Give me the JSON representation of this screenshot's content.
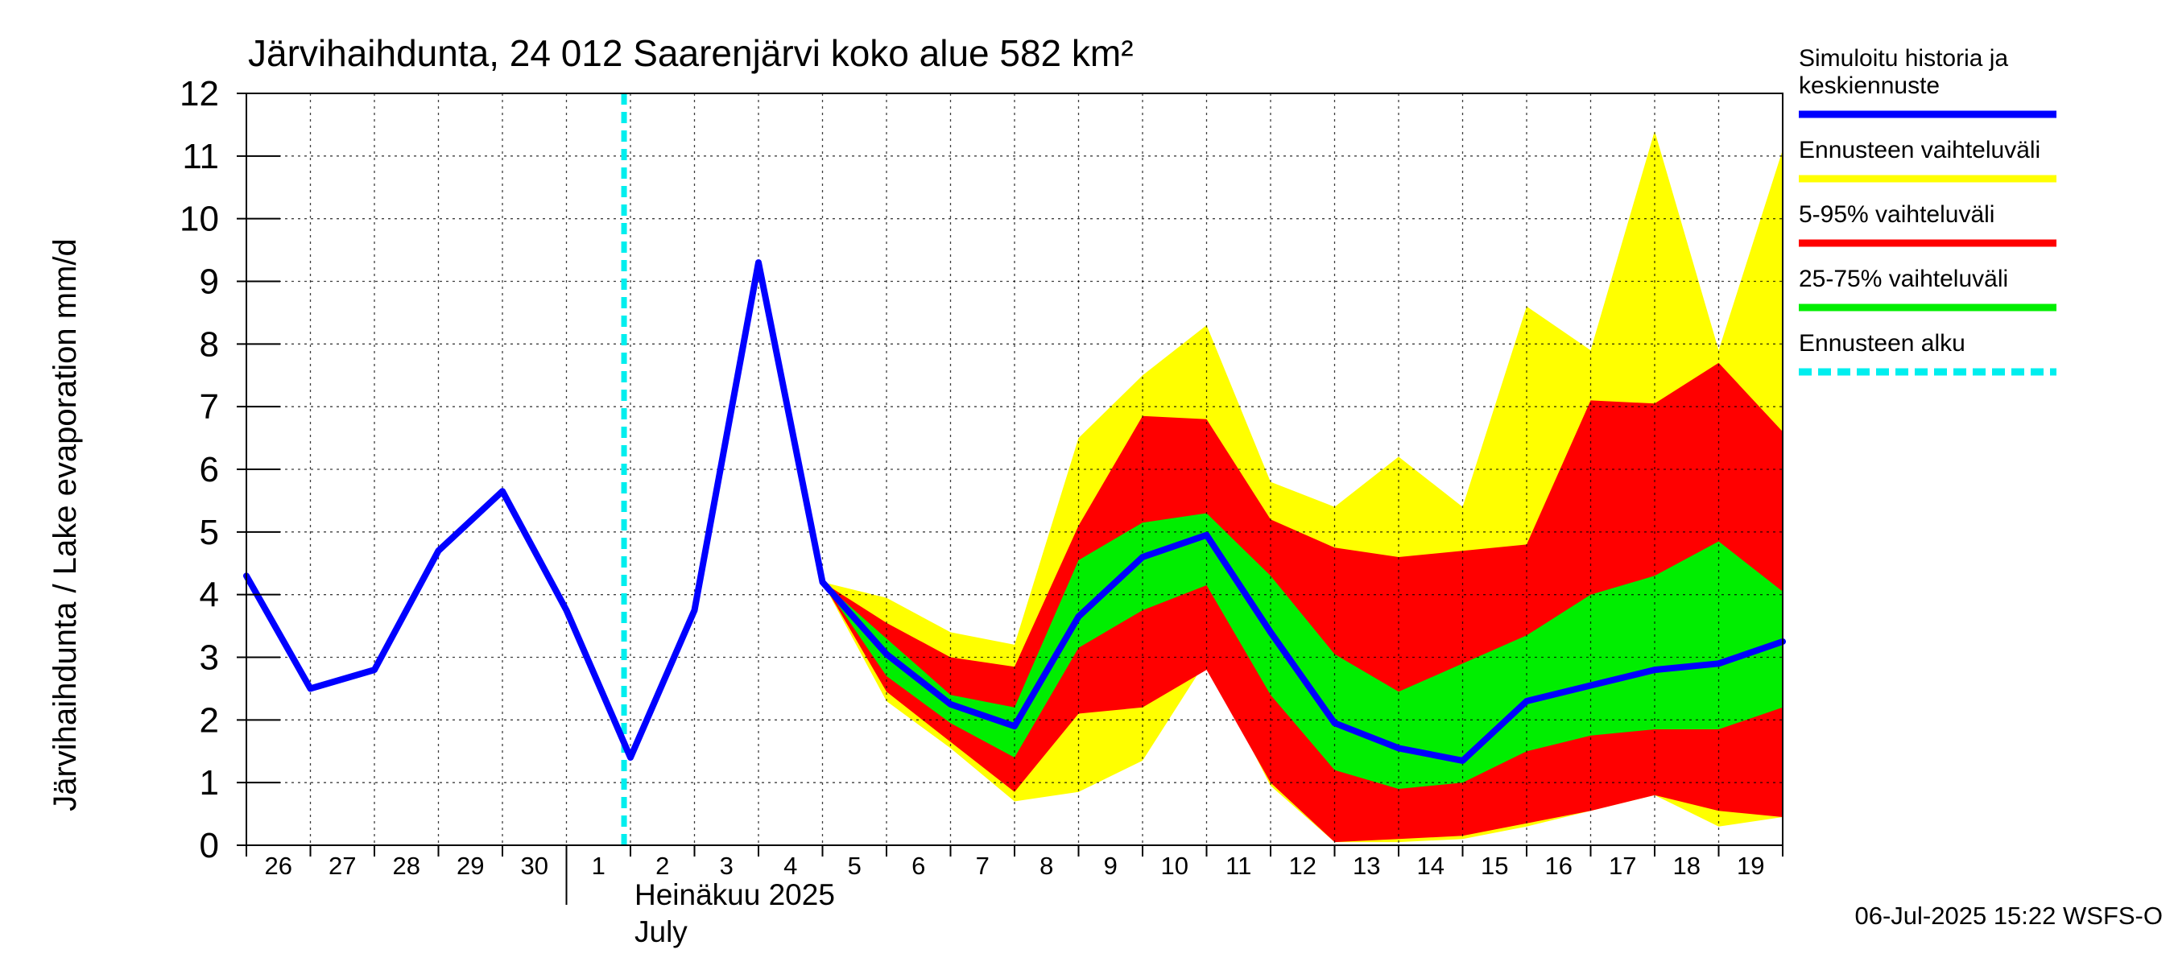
{
  "chart_data": {
    "type": "area",
    "title": "Järvihaihdunta, 24 012 Saarenjärvi koko alue 582 km²",
    "ylabel": "Järvihaihdunta / Lake evaporation   mm/d",
    "ylim": [
      0,
      12
    ],
    "yticks": [
      "0",
      "1",
      "2",
      "3",
      "4",
      "5",
      "6",
      "7",
      "8",
      "9",
      "10",
      "11",
      "12"
    ],
    "x_tick_labels": [
      "26",
      "27",
      "28",
      "29",
      "30",
      "1",
      "2",
      "3",
      "4",
      "5",
      "6",
      "7",
      "8",
      "9",
      "10",
      "11",
      "12",
      "13",
      "14",
      "15",
      "16",
      "17",
      "18",
      "19"
    ],
    "month_label_fi": "Heinäkuu  2025",
    "month_label_en": "July",
    "grid": true,
    "legend_placement": "right",
    "forecast_start_day": 5.9,
    "history": {
      "name": "Simuloitu historia ja keskiennuste",
      "days": [
        0,
        1,
        2,
        3,
        4,
        5,
        6,
        7,
        8,
        9,
        10,
        11,
        12,
        13,
        14,
        15,
        16,
        17,
        18,
        19,
        20,
        21,
        22,
        23,
        24
      ],
      "values": [
        4.3,
        2.5,
        2.8,
        4.7,
        5.65,
        3.75,
        1.4,
        3.75,
        9.3,
        4.2,
        3.05,
        2.25,
        1.9,
        3.65,
        4.6,
        4.95,
        3.4,
        1.95,
        1.55,
        1.35,
        2.3,
        2.55,
        2.8,
        2.9,
        3.25
      ]
    },
    "bands": [
      {
        "name": "Ennusteen vaihteluväli",
        "color": "#ffff00",
        "days": [
          9,
          10,
          11,
          12,
          13,
          14,
          15,
          16,
          17,
          18,
          19,
          20,
          21,
          22,
          23,
          24
        ],
        "upper": [
          4.2,
          3.95,
          3.4,
          3.2,
          6.5,
          7.5,
          8.3,
          5.8,
          5.4,
          6.2,
          5.4,
          8.6,
          7.9,
          11.4,
          7.9,
          11.1
        ],
        "lower": [
          4.2,
          2.3,
          1.55,
          0.7,
          0.85,
          1.35,
          2.95,
          0.95,
          0.05,
          0.05,
          0.1,
          0.3,
          0.55,
          0.8,
          0.3,
          0.45
        ]
      },
      {
        "name": "5-95% vaihteluväli",
        "color": "#ff0000",
        "days": [
          9,
          10,
          11,
          12,
          13,
          14,
          15,
          16,
          17,
          18,
          19,
          20,
          21,
          22,
          23,
          24
        ],
        "upper": [
          4.2,
          3.55,
          3.0,
          2.85,
          5.1,
          6.85,
          6.8,
          5.2,
          4.75,
          4.6,
          4.7,
          4.8,
          7.1,
          7.05,
          7.7,
          6.6
        ],
        "lower": [
          4.2,
          2.45,
          1.65,
          0.85,
          2.1,
          2.2,
          2.8,
          1.0,
          0.05,
          0.1,
          0.15,
          0.35,
          0.55,
          0.8,
          0.55,
          0.45
        ]
      },
      {
        "name": "25-75% vaihteluväli",
        "color": "#00ee00",
        "days": [
          9,
          10,
          11,
          12,
          13,
          14,
          15,
          16,
          17,
          18,
          19,
          20,
          21,
          22,
          23,
          24
        ],
        "upper": [
          4.2,
          3.3,
          2.4,
          2.2,
          4.55,
          5.15,
          5.3,
          4.3,
          3.05,
          2.45,
          2.9,
          3.35,
          4.0,
          4.3,
          4.85,
          4.05
        ],
        "lower": [
          4.2,
          2.7,
          1.95,
          1.4,
          3.15,
          3.75,
          4.15,
          2.4,
          1.2,
          0.9,
          1.0,
          1.5,
          1.75,
          1.85,
          1.85,
          2.2
        ]
      }
    ],
    "legend": [
      {
        "label": "Simuloitu historia ja keskiennuste",
        "color": "#0000ff",
        "style": "solid"
      },
      {
        "label": "Ennusteen vaihteluväli",
        "color": "#ffff00",
        "style": "solid"
      },
      {
        "label": "5-95% vaihteluväli",
        "color": "#ff0000",
        "style": "solid"
      },
      {
        "label": "25-75% vaihteluväli",
        "color": "#00ee00",
        "style": "solid"
      },
      {
        "label": "Ennusteen alku",
        "color": "#00eeee",
        "style": "dashed"
      }
    ]
  },
  "footer": "06-Jul-2025 15:22 WSFS-O"
}
